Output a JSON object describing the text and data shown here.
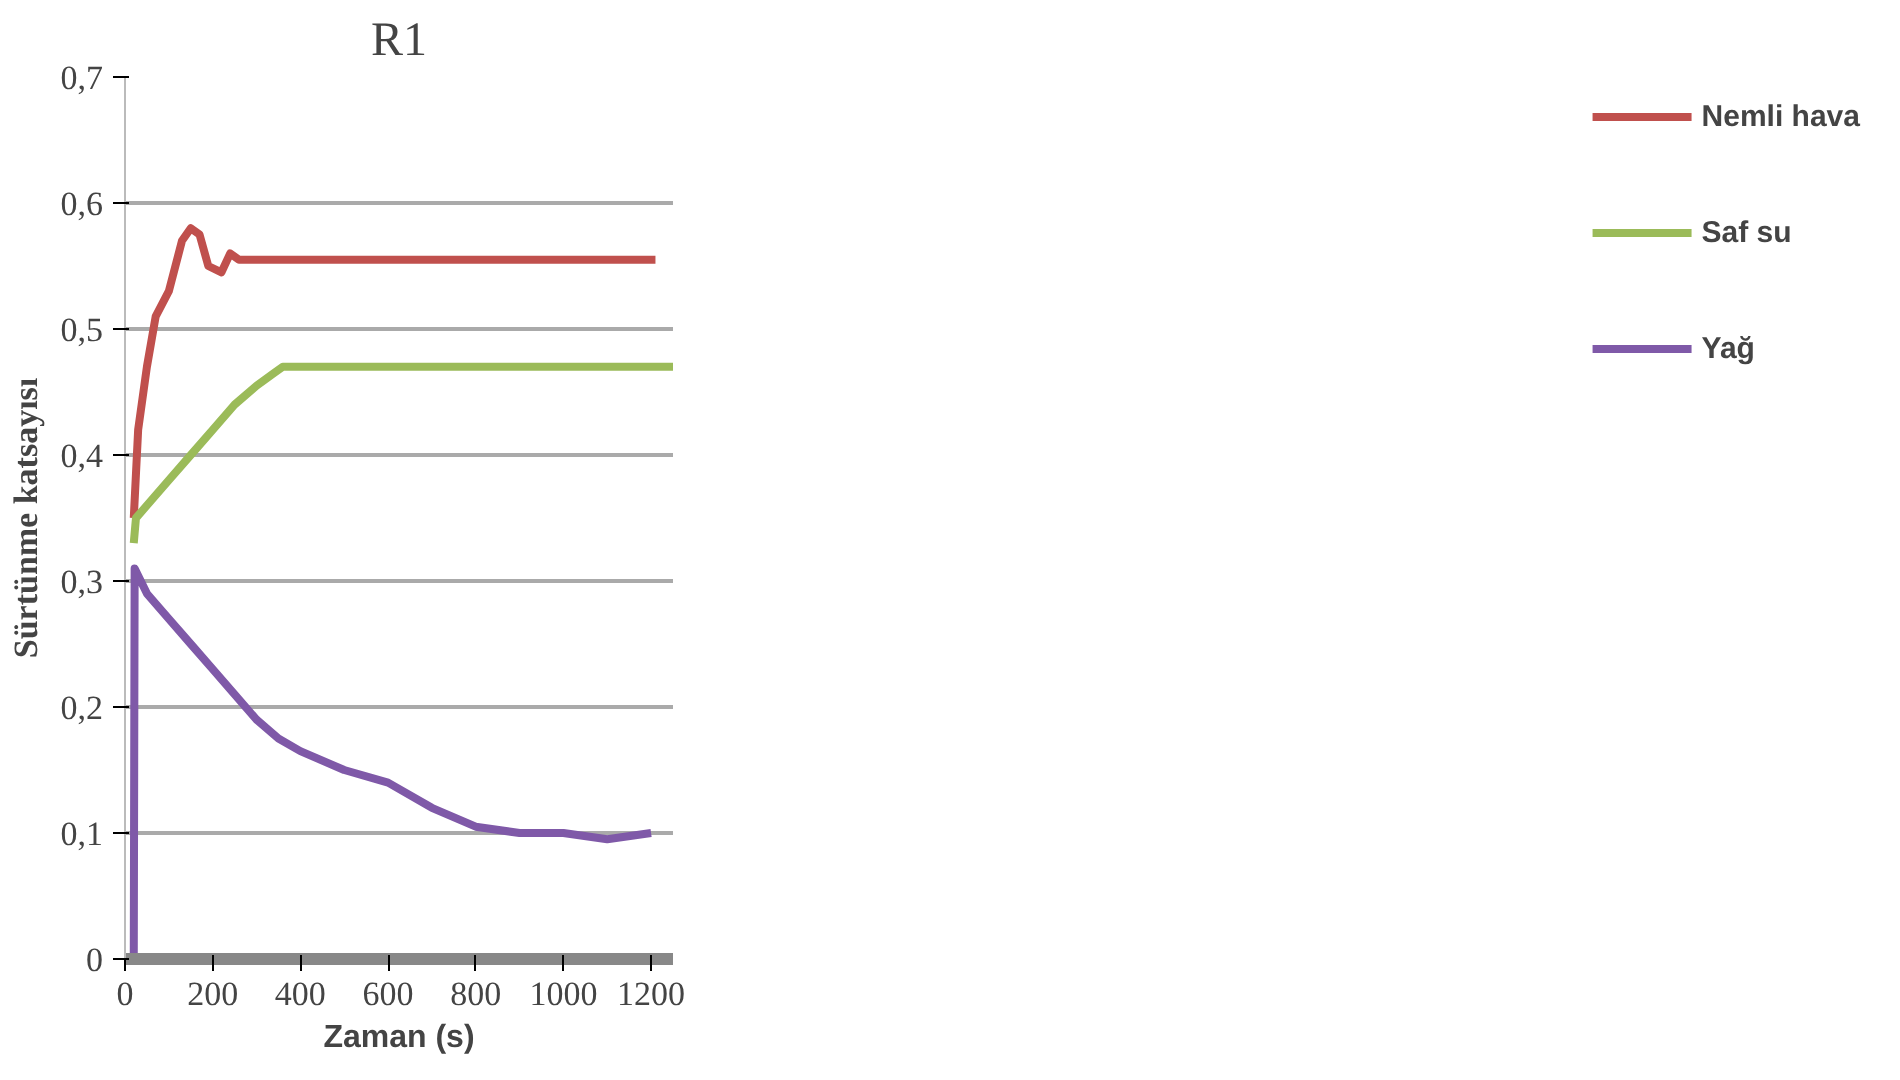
{
  "chart_data": {
    "type": "line",
    "title": "R1",
    "xlabel": "Zaman (s)",
    "ylabel": "Sürtünme katsayısı",
    "xlim": [
      0,
      1250
    ],
    "xticks": [
      0,
      200,
      400,
      600,
      800,
      1000,
      1200
    ],
    "ylim": [
      0,
      0.7
    ],
    "yticks": [
      {
        "value": 0,
        "label": "0"
      },
      {
        "value": 0.1,
        "label": "0,1"
      },
      {
        "value": 0.2,
        "label": "0,2"
      },
      {
        "value": 0.3,
        "label": "0,3"
      },
      {
        "value": 0.4,
        "label": "0,4"
      },
      {
        "value": 0.5,
        "label": "0,5"
      },
      {
        "value": 0.6,
        "label": "0,6"
      },
      {
        "value": 0.7,
        "label": "0,7"
      }
    ],
    "grid": "y",
    "legend": "right",
    "line_style": "solid",
    "series": [
      {
        "name": "Nemli hava",
        "color": "#c0504d",
        "x": [
          20,
          30,
          50,
          70,
          100,
          130,
          150,
          170,
          190,
          220,
          240,
          260,
          1210
        ],
        "values": [
          0.35,
          0.42,
          0.47,
          0.51,
          0.53,
          0.57,
          0.58,
          0.575,
          0.55,
          0.545,
          0.56,
          0.555,
          0.555
        ]
      },
      {
        "name": "Saf su",
        "color": "#9bbb59",
        "x": [
          20,
          25,
          50,
          100,
          150,
          200,
          250,
          300,
          340,
          360,
          1250
        ],
        "values": [
          0.33,
          0.35,
          0.36,
          0.38,
          0.4,
          0.42,
          0.44,
          0.455,
          0.465,
          0.47,
          0.47
        ]
      },
      {
        "name": "Yağ",
        "color": "#7f59a8",
        "x": [
          20,
          22,
          50,
          100,
          150,
          200,
          250,
          300,
          350,
          400,
          500,
          600,
          700,
          800,
          900,
          1000,
          1100,
          1200
        ],
        "values": [
          0,
          0.31,
          0.29,
          0.27,
          0.25,
          0.23,
          0.21,
          0.19,
          0.175,
          0.165,
          0.15,
          0.14,
          0.12,
          0.105,
          0.1,
          0.1,
          0.095,
          0.1
        ]
      }
    ]
  }
}
